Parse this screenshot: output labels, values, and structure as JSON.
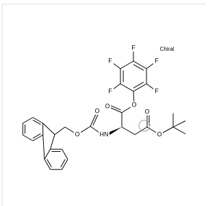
{
  "note_label": "Chiral",
  "atoms": [
    "F",
    "F",
    "F",
    "F",
    "F",
    "O",
    "O",
    "O",
    "O",
    "O",
    "O",
    "HN"
  ]
}
